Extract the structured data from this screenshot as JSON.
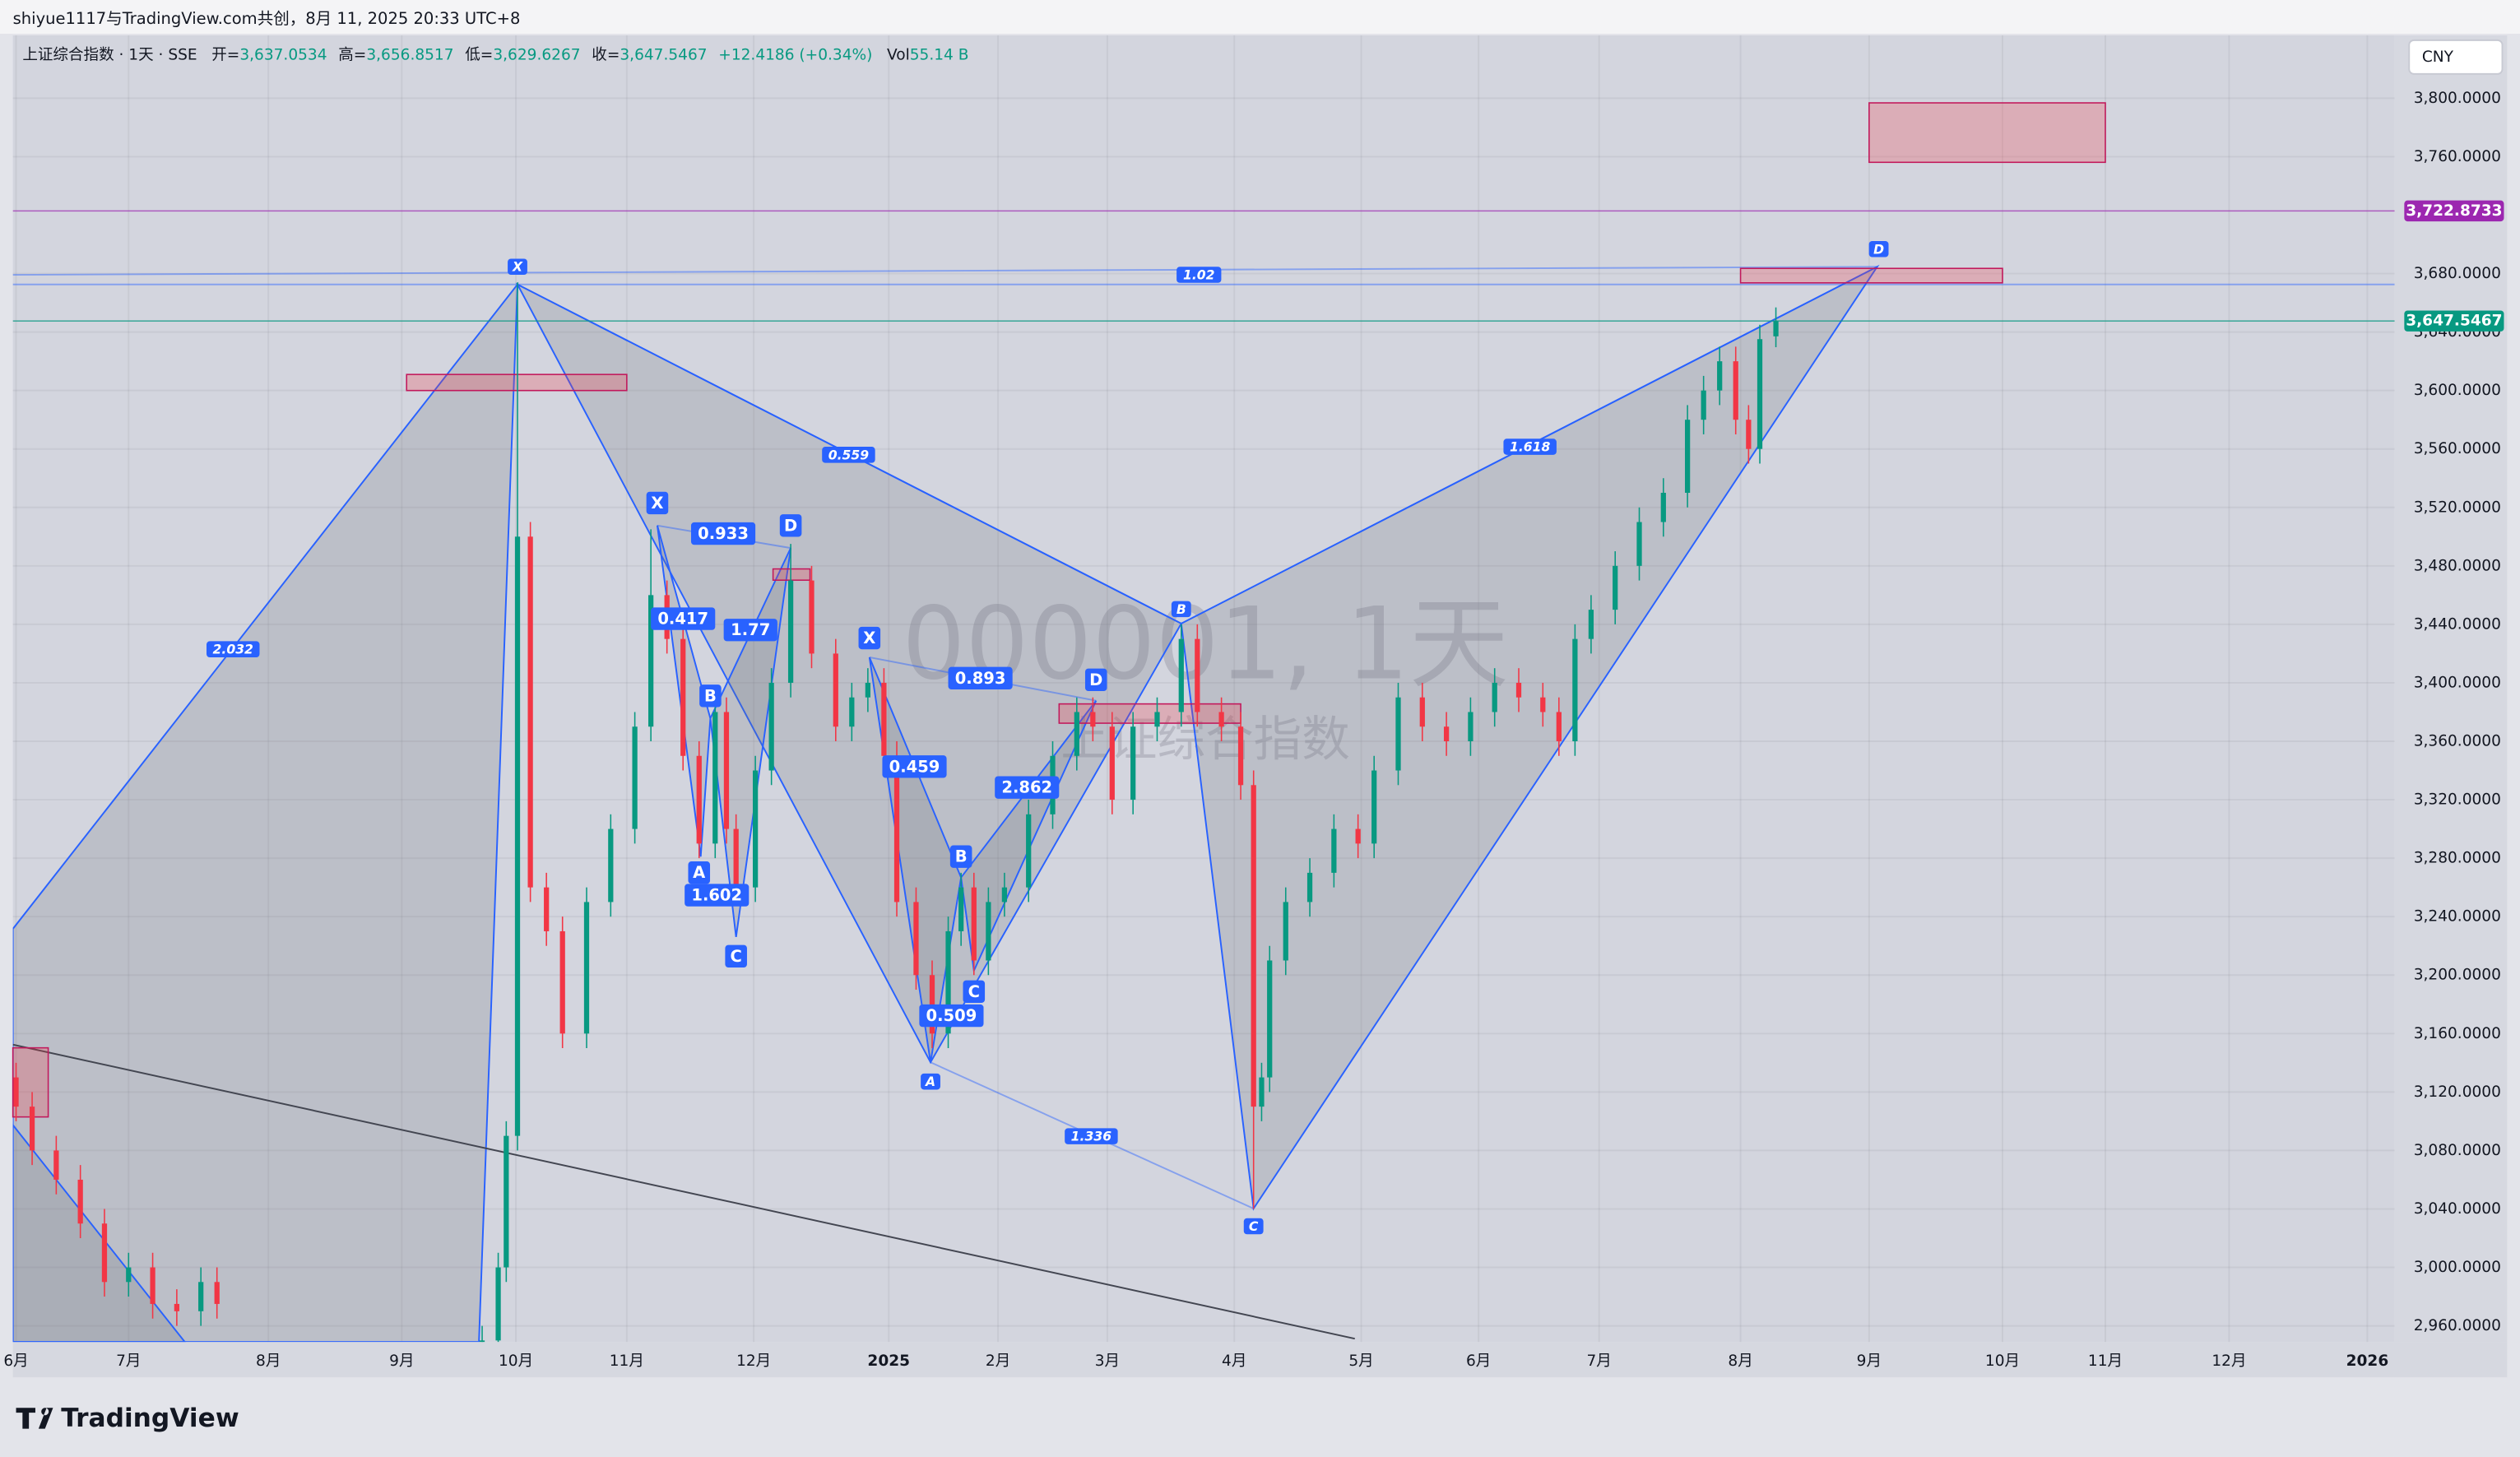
{
  "header": {
    "credit": "shiyue1117与TradingView.com共创，8月 11, 2025 20:33 UTC+8",
    "symbol": "上证综合指数 · 1天 · SSE",
    "ohlc": [
      {
        "label": "开=",
        "value": "3,637.0534"
      },
      {
        "label": "高=",
        "value": "3,656.8517"
      },
      {
        "label": "低=",
        "value": "3,629.6267"
      },
      {
        "label": "收=",
        "value": "3,647.5467"
      }
    ],
    "change": "+12.4186 (+0.34%)",
    "volume_label": "Vol",
    "volume": "55.14 B",
    "currency": "CNY"
  },
  "watermark": {
    "title": "000001, 1天",
    "subtitle": "上证综合指数"
  },
  "chart_data": {
    "type": "candlestick",
    "up_color": "#089981",
    "down_color": "#f23645",
    "grid": true,
    "x": [
      0.5,
      3,
      6.75,
      10.5,
      14.25,
      18,
      21.75,
      25.5,
      29.25,
      31.75,
      73,
      75.5,
      76.75,
      78.5,
      80.5,
      83,
      85.5,
      89.25,
      93,
      96.75,
      99.25,
      101.75,
      104.25,
      106.75,
      109.25,
      111,
      112.5,
      115.5,
      118,
      121,
      124.25,
      128,
      130.5,
      133,
      135.5,
      137.5,
      140.5,
      143,
      145.5,
      147.5,
      149.5,
      151.75,
      154.25,
      158,
      161.75,
      165.5,
      168,
      171,
      174.25,
      178,
      181.75,
      184.25,
      188,
      191,
      193,
      194.25,
      195.5,
      198,
      201.75,
      205.5,
      209.25,
      211.75,
      215.5,
      219.25,
      223,
      226.75,
      230.5,
      234.25,
      238,
      240.5,
      243,
      245.5,
      249.25,
      253,
      256.75,
      260.5,
      263,
      265.5,
      268,
      270,
      271.75,
      274.25
    ],
    "open": [
      3130,
      3110,
      3080,
      3060,
      3030,
      2990,
      3000,
      2975,
      2970,
      2990,
      2900,
      2950,
      3000,
      3090,
      3500,
      3260,
      3230,
      3160,
      3250,
      3300,
      3370,
      3460,
      3430,
      3350,
      3290,
      3380,
      3300,
      3260,
      3340,
      3400,
      3470,
      3420,
      3370,
      3390,
      3400,
      3350,
      3250,
      3200,
      3160,
      3230,
      3260,
      3210,
      3250,
      3260,
      3310,
      3350,
      3380,
      3370,
      3320,
      3370,
      3380,
      3430,
      3380,
      3370,
      3330,
      3110,
      3130,
      3210,
      3250,
      3270,
      3300,
      3290,
      3340,
      3390,
      3370,
      3360,
      3380,
      3400,
      3390,
      3380,
      3360,
      3430,
      3450,
      3480,
      3510,
      3530,
      3580,
      3600,
      3620,
      3580,
      3560,
      3637.0534
    ],
    "high": [
      3140,
      3120,
      3090,
      3070,
      3040,
      3010,
      3010,
      2985,
      3000,
      3000,
      2960,
      3010,
      3100,
      3674,
      3510,
      3270,
      3240,
      3260,
      3310,
      3380,
      3505,
      3470,
      3440,
      3360,
      3390,
      3390,
      3310,
      3350,
      3410,
      3495,
      3480,
      3430,
      3400,
      3410,
      3410,
      3360,
      3260,
      3210,
      3240,
      3270,
      3270,
      3260,
      3270,
      3320,
      3360,
      3390,
      3390,
      3380,
      3380,
      3390,
      3440,
      3440,
      3390,
      3380,
      3340,
      3140,
      3220,
      3260,
      3280,
      3310,
      3310,
      3350,
      3400,
      3400,
      3380,
      3390,
      3410,
      3410,
      3400,
      3390,
      3440,
      3460,
      3490,
      3520,
      3540,
      3590,
      3610,
      3630,
      3630,
      3590,
      3645,
      3656.8517
    ],
    "low": [
      3100,
      3070,
      3050,
      3020,
      2980,
      2980,
      2965,
      2960,
      2960,
      2965,
      2890,
      2940,
      2990,
      3080,
      3250,
      3220,
      3150,
      3150,
      3240,
      3290,
      3360,
      3420,
      3340,
      3280,
      3280,
      3290,
      3250,
      3250,
      3330,
      3390,
      3410,
      3360,
      3360,
      3380,
      3340,
      3240,
      3190,
      3150,
      3150,
      3220,
      3200,
      3200,
      3240,
      3250,
      3300,
      3340,
      3360,
      3310,
      3310,
      3360,
      3370,
      3370,
      3360,
      3320,
      3040,
      3100,
      3120,
      3200,
      3240,
      3260,
      3280,
      3280,
      3330,
      3360,
      3350,
      3350,
      3370,
      3380,
      3370,
      3350,
      3350,
      3420,
      3440,
      3470,
      3500,
      3520,
      3570,
      3590,
      3570,
      3550,
      3550,
      3629.6267
    ],
    "close": [
      3110,
      3080,
      3060,
      3030,
      2990,
      3000,
      2975,
      2970,
      2990,
      2975,
      2950,
      3000,
      3090,
      3500,
      3260,
      3230,
      3160,
      3250,
      3300,
      3370,
      3460,
      3430,
      3350,
      3290,
      3380,
      3300,
      3260,
      3340,
      3400,
      3470,
      3420,
      3370,
      3390,
      3400,
      3350,
      3250,
      3200,
      3160,
      3230,
      3260,
      3210,
      3250,
      3260,
      3310,
      3350,
      3380,
      3370,
      3320,
      3370,
      3380,
      3430,
      3380,
      3370,
      3330,
      3110,
      3130,
      3210,
      3250,
      3270,
      3300,
      3290,
      3340,
      3390,
      3370,
      3360,
      3380,
      3400,
      3390,
      3380,
      3360,
      3430,
      3450,
      3480,
      3510,
      3530,
      3580,
      3600,
      3620,
      3580,
      3560,
      3635.1281,
      3647.5467
    ],
    "xlim": [
      0,
      370.5
    ],
    "xticks": [
      {
        "value": 0.5,
        "label": "6月"
      },
      {
        "value": 18,
        "label": "7月"
      },
      {
        "value": 39.75,
        "label": "8月"
      },
      {
        "value": 60.5,
        "label": "9月"
      },
      {
        "value": 78.25,
        "label": "10月"
      },
      {
        "value": 95.5,
        "label": "11月"
      },
      {
        "value": 115.25,
        "label": "12月"
      },
      {
        "value": 136.25,
        "label": "2025"
      },
      {
        "value": 153.25,
        "label": "2月"
      },
      {
        "value": 170.25,
        "label": "3月"
      },
      {
        "value": 190,
        "label": "4月"
      },
      {
        "value": 209.75,
        "label": "5月"
      },
      {
        "value": 228,
        "label": "6月"
      },
      {
        "value": 246.75,
        "label": "7月"
      },
      {
        "value": 268.75,
        "label": "8月"
      },
      {
        "value": 288.75,
        "label": "9月"
      },
      {
        "value": 309.5,
        "label": "10月"
      },
      {
        "value": 325.5,
        "label": "11月"
      },
      {
        "value": 344.75,
        "label": "12月"
      },
      {
        "value": 366.25,
        "label": "2026"
      }
    ],
    "ylim": [
      2949,
      3843
    ],
    "yticks": [
      {
        "value": 3800,
        "label": "3,800.0000"
      },
      {
        "value": 3760,
        "label": "3,760.0000"
      },
      {
        "value": 3680,
        "label": "3,680.0000"
      },
      {
        "value": 3640,
        "label": "3,640.0000"
      },
      {
        "value": 3600,
        "label": "3,600.0000"
      },
      {
        "value": 3560,
        "label": "3,560.0000"
      },
      {
        "value": 3520,
        "label": "3,520.0000"
      },
      {
        "value": 3480,
        "label": "3,480.0000"
      },
      {
        "value": 3440,
        "label": "3,440.0000"
      },
      {
        "value": 3400,
        "label": "3,400.0000"
      },
      {
        "value": 3360,
        "label": "3,360.0000"
      },
      {
        "value": 3320,
        "label": "3,320.0000"
      },
      {
        "value": 3280,
        "label": "3,280.0000"
      },
      {
        "value": 3240,
        "label": "3,240.0000"
      },
      {
        "value": 3200,
        "label": "3,200.0000"
      },
      {
        "value": 3160,
        "label": "3,160.0000"
      },
      {
        "value": 3120,
        "label": "3,120.0000"
      },
      {
        "value": 3080,
        "label": "3,080.0000"
      },
      {
        "value": 3040,
        "label": "3,040.0000"
      },
      {
        "value": 3000,
        "label": "3,000.0000"
      },
      {
        "value": 2960,
        "label": "2,960.0000"
      }
    ],
    "price_lines": [
      {
        "value": 3722.8733,
        "label": "3,722.8733",
        "color": "#9c27b0"
      },
      {
        "value": 3647.5467,
        "label": "3,647.5467",
        "color": "#089981"
      }
    ],
    "pattern_labels": [
      "X",
      "A",
      "B",
      "C",
      "D",
      "0.559",
      "1.336",
      "1.618",
      "1.02",
      "2.032",
      "X",
      "A",
      "B",
      "C",
      "D",
      "0.933",
      "0.417",
      "1.77",
      "1.602",
      "X",
      "B",
      "C",
      "D",
      "0.893",
      "0.459",
      "2.862",
      "0.509"
    ]
  },
  "footer": {
    "brand": "TradingView"
  }
}
